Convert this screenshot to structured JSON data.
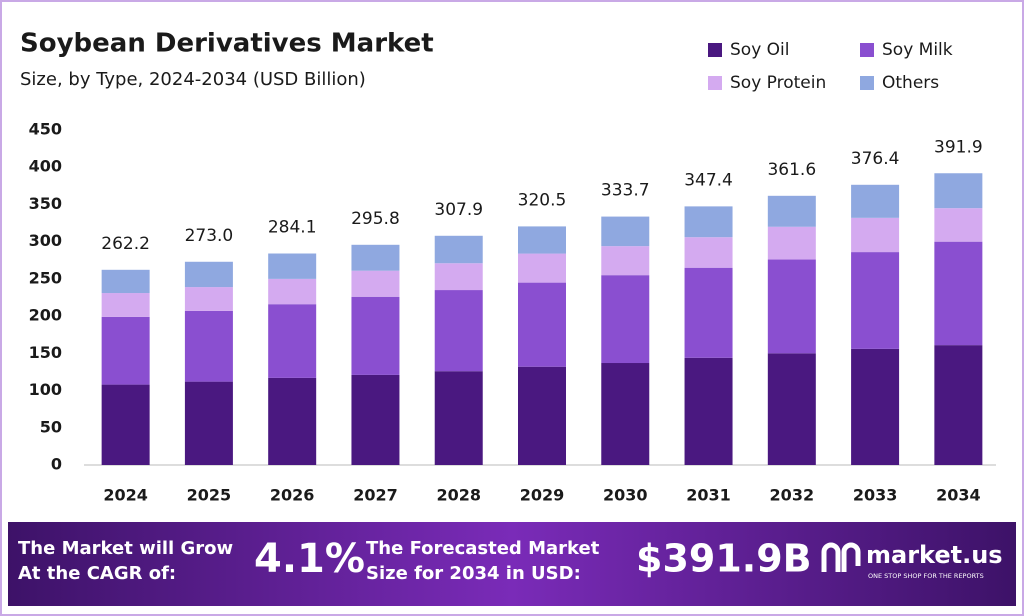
{
  "chart_data": {
    "type": "stacked-bar",
    "title": "Soybean Derivatives Market",
    "subtitle": "Size, by Type, 2024-2034 (USD Billion)",
    "categories": [
      "2024",
      "2025",
      "2026",
      "2027",
      "2028",
      "2029",
      "2030",
      "2031",
      "2032",
      "2033",
      "2034"
    ],
    "series": [
      {
        "name": "Soy Oil",
        "color": "#4a1880",
        "values": [
          108,
          112,
          117,
          121,
          126,
          132,
          137,
          144,
          150,
          156,
          161
        ]
      },
      {
        "name": "Soy Milk",
        "color": "#8a4fd0",
        "values": [
          91,
          95,
          99,
          105,
          109,
          113,
          118,
          121,
          126,
          130,
          139
        ]
      },
      {
        "name": "Soy Protein",
        "color": "#d4aaf0",
        "values": [
          32,
          32,
          34,
          35,
          36,
          39,
          39,
          41,
          44,
          46,
          45
        ]
      },
      {
        "name": "Others",
        "color": "#8fa8e0",
        "values": [
          31.2,
          34,
          34.1,
          34.8,
          36.9,
          36.5,
          39.7,
          41.4,
          41.6,
          44.4,
          46.9
        ]
      }
    ],
    "totals": {
      "values": [
        262.2,
        273.0,
        284.1,
        295.8,
        307.9,
        320.5,
        333.7,
        347.4,
        361.6,
        376.4,
        391.9
      ],
      "value_labels": [
        "262.2",
        "273.0",
        "284.1",
        "295.8",
        "307.9",
        "320.5",
        "333.7",
        "347.4",
        "361.6",
        "376.4",
        "391.9"
      ]
    },
    "ylim": [
      0,
      450
    ],
    "yticks": [
      0,
      50,
      100,
      150,
      200,
      250,
      300,
      350,
      400,
      450
    ],
    "grid": false,
    "legend": "top-right"
  },
  "footer": {
    "cagr_text": [
      "The Market will Grow",
      "At the CAGR of:"
    ],
    "cagr": "4.1%",
    "forecast_text": [
      "The Forecasted Market",
      "Size for 2034 in USD:"
    ],
    "forecast": "$391.9B",
    "brand": "market.us",
    "tagline": "ONE STOP SHOP FOR THE REPORTS"
  }
}
